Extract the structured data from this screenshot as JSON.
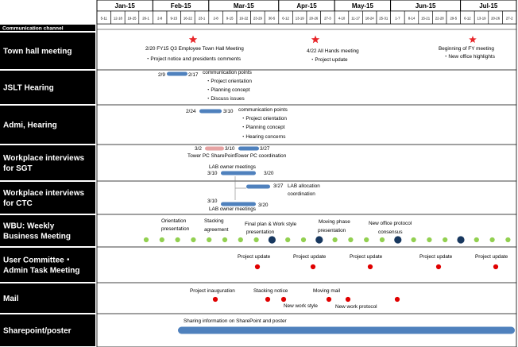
{
  "months": [
    "Jan-15",
    "Feb-15",
    "Mar-15",
    "Apr-15",
    "May-15",
    "Jun-15",
    "Jul-15"
  ],
  "week_labels": [
    "5-11",
    "12-18",
    "19-25",
    "26-1",
    "2-8",
    "9-15",
    "16-22",
    "23-1",
    "2-8",
    "9-15",
    "16-22",
    "23-29",
    "30-5",
    "6-12",
    "13-19",
    "20-26",
    "27-3",
    "4-10",
    "11-17",
    "18-24",
    "25-31",
    "1-7",
    "8-14",
    "15-21",
    "22-28",
    "29-5",
    "6-12",
    "13-19",
    "20-26",
    "27-2"
  ],
  "header_label": "Communication channel",
  "rows": [
    {
      "label": [
        "Town hall meeting"
      ]
    },
    {
      "label": [
        "JSLT Hearing"
      ]
    },
    {
      "label": [
        "Admi, Hearing"
      ]
    },
    {
      "label": [
        "Workplace interviews",
        "for SGT"
      ]
    },
    {
      "label": [
        "Workplace interviews",
        "for CTC"
      ]
    },
    {
      "label": [
        "WBU: Weekly",
        "Business  Meeting"
      ]
    },
    {
      "label": [
        "User Committee・",
        "Admin Task Meeting"
      ]
    },
    {
      "label": [
        "Mail"
      ]
    },
    {
      "label": [
        "Sharepoint/poster"
      ]
    }
  ],
  "annotations": {
    "townhall": [
      "2/20 FY15 Q3 Employee Town Hall Meeting",
      "・Project notice and presidents comments",
      "4/22 All Hands meeting",
      "・Project update",
      "Beginning of FY meeting",
      "・New office highlights"
    ],
    "jslt": [
      "2/9",
      "2/17",
      "communication points",
      "・Project orientation",
      "・Planning concept",
      "・Discuss issues"
    ],
    "admi": [
      "2/24",
      "3/10",
      "communication points",
      "・Project orientation",
      "・Planning concept",
      "・Hearing concerns"
    ],
    "sgt": [
      "3/2",
      "3/10",
      "3/27",
      "Tower PC SharePoint",
      "Tower PC coordination"
    ],
    "ctc": [
      "LAB owner meetings",
      "3/10",
      "3/20",
      "3/27",
      "LAB allocation",
      "coordination",
      "3/10",
      "3/20",
      "LAB owner meetings"
    ],
    "wbu": [
      "Orientation",
      "presentation",
      "Stacking",
      "agreement",
      "Final plan & Work style",
      "presentation",
      "Moving phase",
      "presentation",
      "New office protocol",
      "consensus"
    ],
    "committee": [
      "Project update",
      "Project update",
      "Project update",
      "Project update",
      "Project update"
    ],
    "mail": [
      "Project inauguration",
      "Stacking notice",
      "Moving mail",
      "New work style",
      "New work protocol"
    ],
    "sharepoint": [
      "Sharing information on SharePoint and poster"
    ]
  },
  "colors": {
    "bar_blue": "#4f81bd",
    "bar_pink": "#e6a3a3",
    "star_red": "#e8262a",
    "dot_green": "#92d050",
    "dot_navy": "#17375e",
    "dot_red": "#e00000",
    "label_bg": "#000000",
    "label_text": "#ffffff"
  }
}
